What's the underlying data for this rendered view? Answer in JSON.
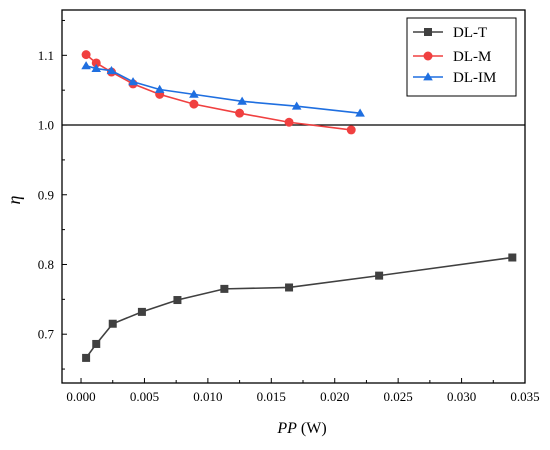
{
  "chart_data": {
    "type": "line",
    "title": "",
    "xlabel": {
      "italic": "PP",
      "unit": " (W)"
    },
    "ylabel": "η",
    "xlim": [
      -0.0015,
      0.035
    ],
    "ylim": [
      0.63,
      1.165
    ],
    "x_ticks": [
      0.0,
      0.005,
      0.01,
      0.015,
      0.02,
      0.025,
      0.03,
      0.035
    ],
    "x_tick_labels": [
      "0.000",
      "0.005",
      "0.010",
      "0.015",
      "0.020",
      "0.025",
      "0.030",
      "0.035"
    ],
    "y_ticks": [
      0.7,
      0.8,
      0.9,
      1.0,
      1.1
    ],
    "y_tick_labels": [
      "0.7",
      "0.8",
      "0.9",
      "1.0",
      "1.1"
    ],
    "reference_line": {
      "y": 1.0
    },
    "grid": false,
    "legend_position": "top-right",
    "series": [
      {
        "name": "DL-T",
        "color": "#404040",
        "marker": "square",
        "x": [
          0.0004,
          0.0012,
          0.0025,
          0.0048,
          0.0076,
          0.0113,
          0.0164,
          0.0235,
          0.034
        ],
        "y": [
          0.666,
          0.686,
          0.715,
          0.732,
          0.749,
          0.765,
          0.767,
          0.784,
          0.81
        ]
      },
      {
        "name": "DL-M",
        "color": "#f04040",
        "marker": "circle",
        "x": [
          0.0004,
          0.0012,
          0.0024,
          0.0041,
          0.0062,
          0.0089,
          0.0125,
          0.0164,
          0.0213
        ],
        "y": [
          1.101,
          1.089,
          1.076,
          1.059,
          1.044,
          1.03,
          1.017,
          1.004,
          0.993
        ]
      },
      {
        "name": "DL-IM",
        "color": "#1f6fe0",
        "marker": "triangle",
        "x": [
          0.0004,
          0.0012,
          0.0024,
          0.0041,
          0.0062,
          0.0089,
          0.0127,
          0.017,
          0.022
        ],
        "y": [
          1.085,
          1.081,
          1.078,
          1.062,
          1.051,
          1.044,
          1.034,
          1.027,
          1.017
        ]
      }
    ]
  }
}
